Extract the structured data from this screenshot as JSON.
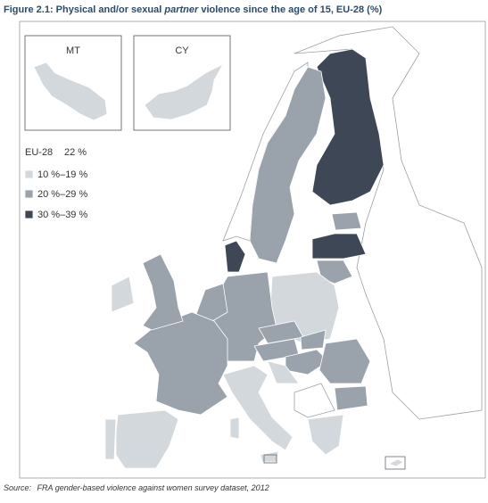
{
  "title": {
    "parts": [
      "Figure 2.1: Physical and/or sexual ",
      "partner",
      " violence since the age of 15, EU-28 (%)"
    ]
  },
  "insets": [
    {
      "label": "MT"
    },
    {
      "label": "CY"
    }
  ],
  "legend": {
    "total": {
      "label": "EU-28",
      "value": "22 %"
    },
    "items": [
      {
        "label": "10 %–19 %"
      },
      {
        "label": "20 %–29 %"
      },
      {
        "label": "30 %–39 %"
      }
    ]
  },
  "source": {
    "prefix": "Source:",
    "text": "FRA gender-based violence against women survey dataset, 2012"
  }
}
